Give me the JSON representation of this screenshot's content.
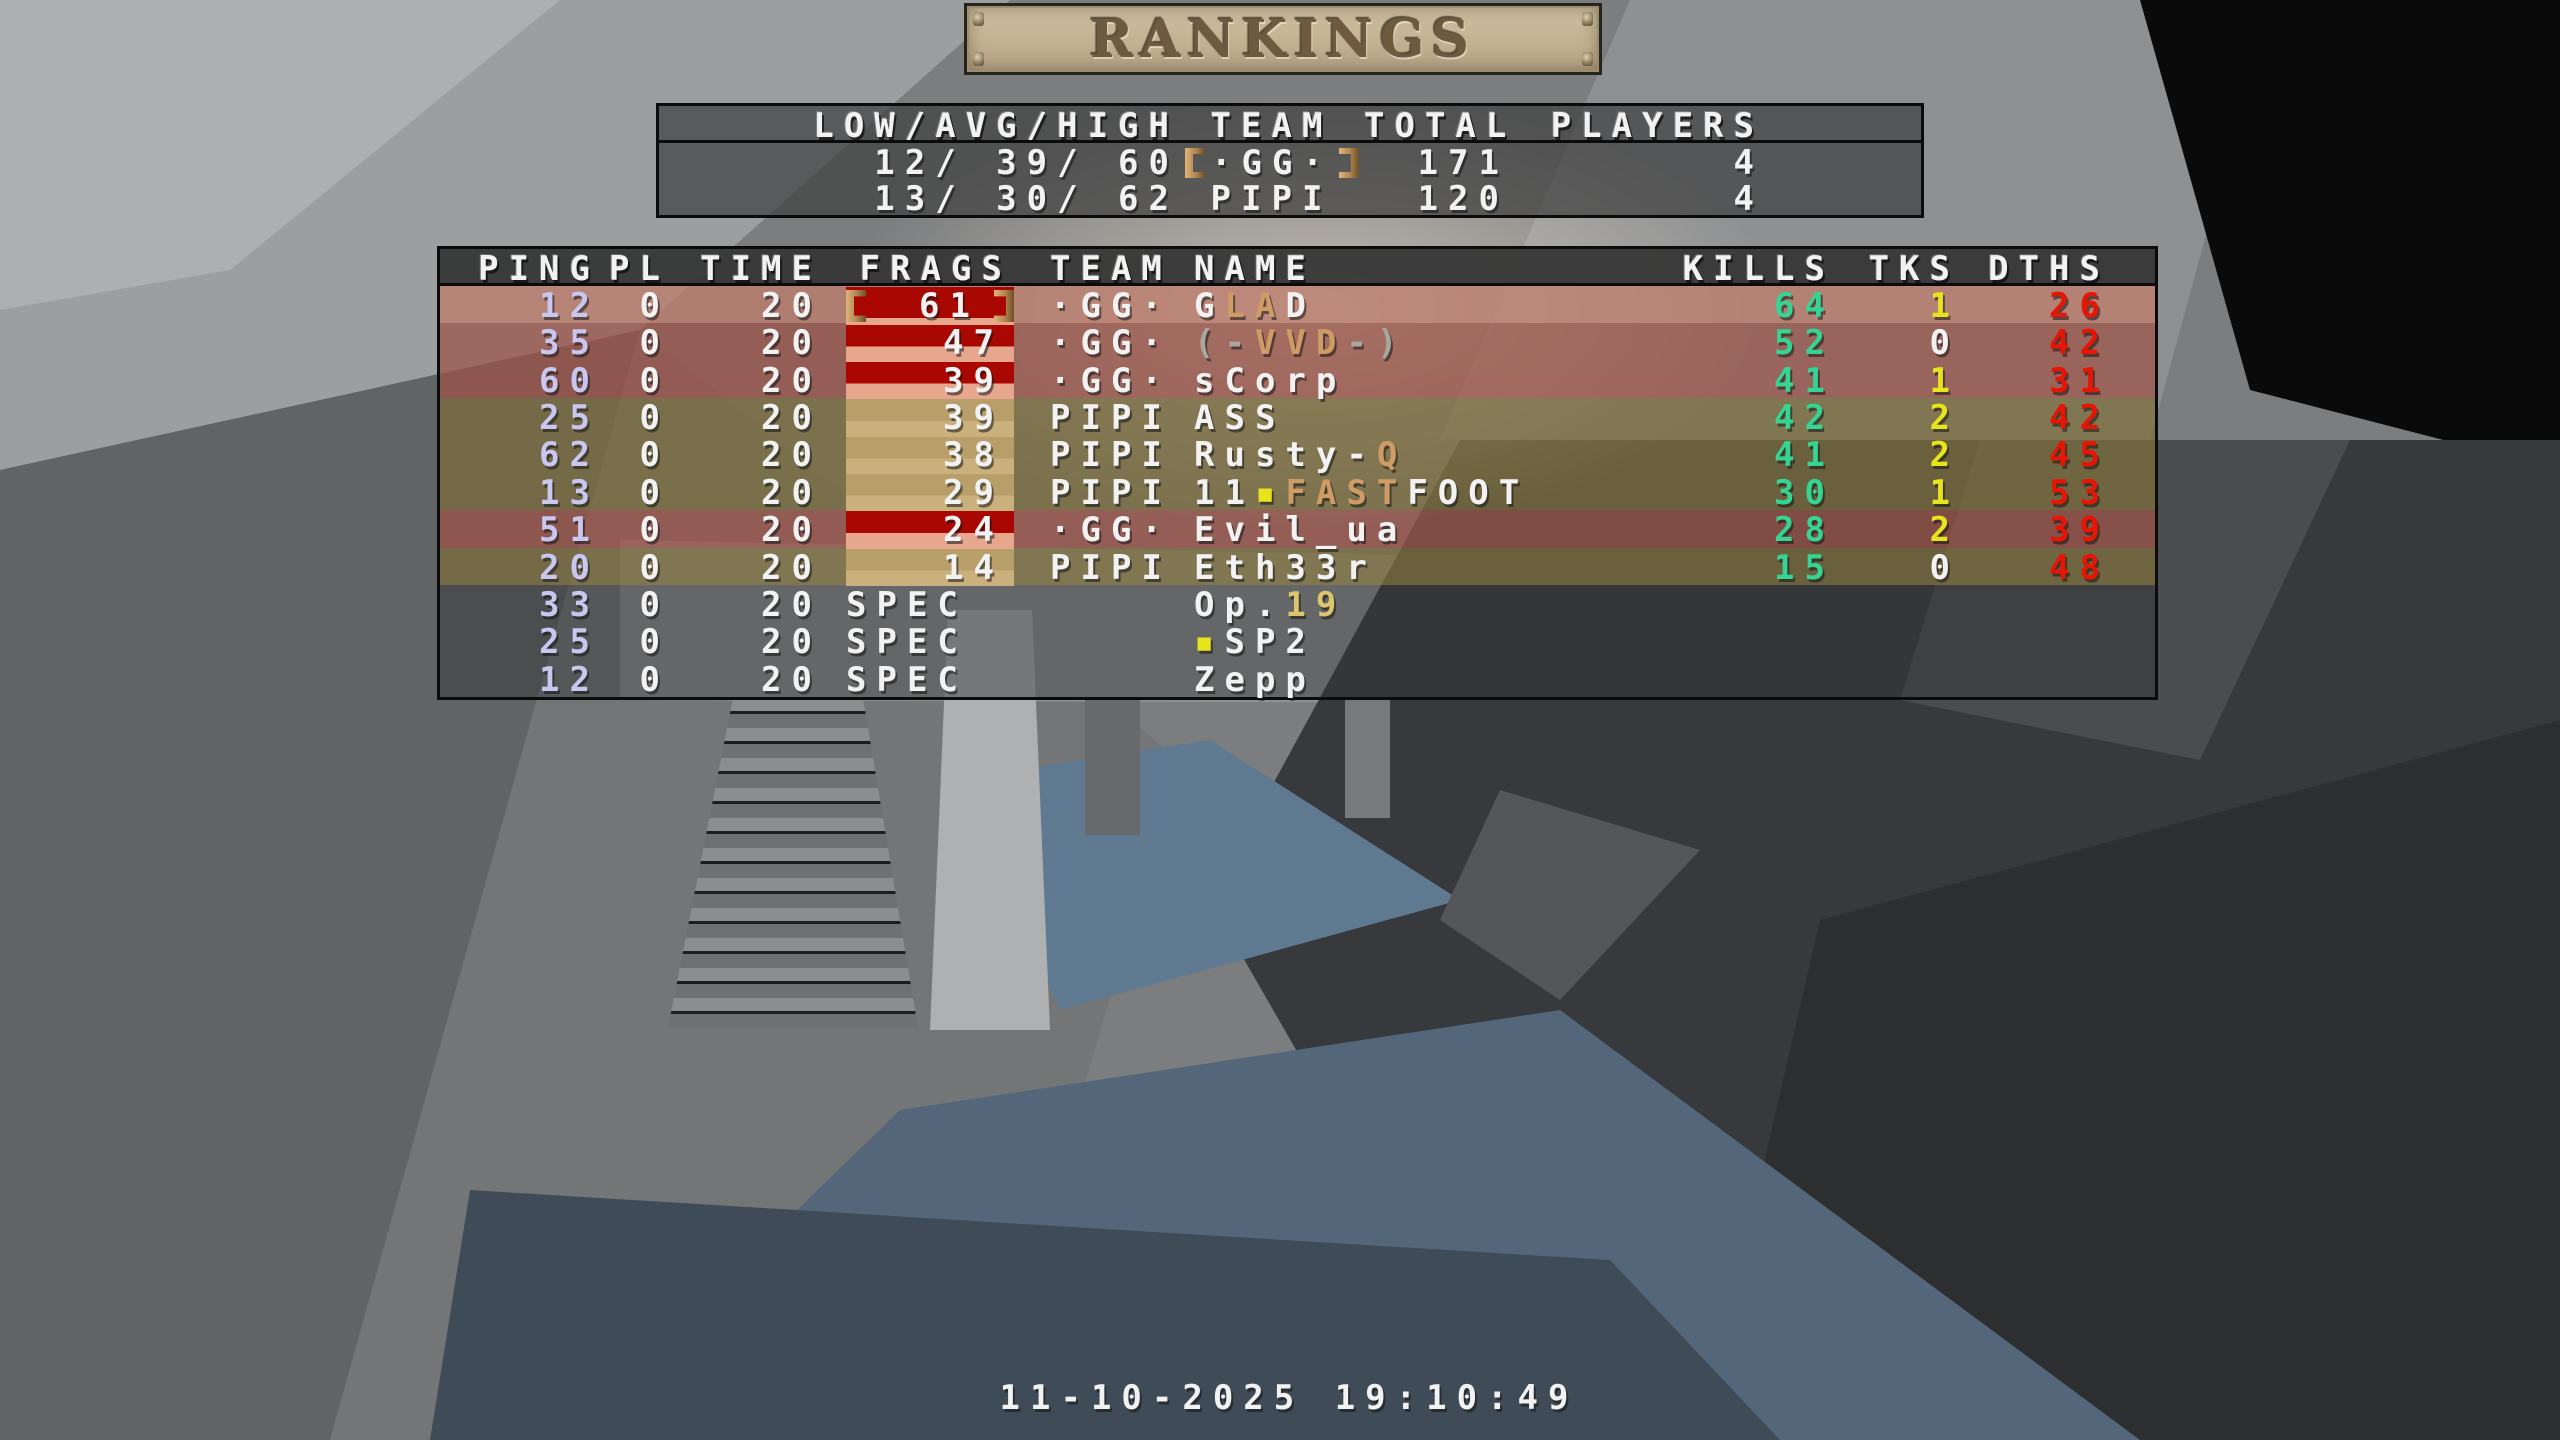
{
  "banner": {
    "title": "RANKINGS"
  },
  "summary": {
    "headers": [
      "LOW/AVG/HIGH",
      "TEAM",
      "TOTAL",
      "PLAYERS"
    ],
    "rows": [
      {
        "low_avg_high": "12/ 39/ 60",
        "team": "·GG·",
        "team_bracketed": true,
        "total": "171",
        "players": "4"
      },
      {
        "low_avg_high": "13/ 30/ 62",
        "team": "PIPI",
        "team_bracketed": false,
        "total": "120",
        "players": "4"
      }
    ]
  },
  "scoreboard": {
    "headers": [
      "PING",
      "PL",
      "TIME",
      "FRAGS",
      "TEAM",
      "NAME",
      "KILLS",
      "TKS",
      "DTHS"
    ],
    "rows": [
      {
        "ping": "12",
        "pl": "0",
        "time": "20",
        "frags": "61",
        "leader": true,
        "team": "·GG·",
        "team_key": "gg",
        "name": [
          {
            "t": "G",
            "c": "white"
          },
          {
            "t": "LA",
            "c": "tan"
          },
          {
            "t": "D",
            "c": "white"
          }
        ],
        "kills": "64",
        "tks": "1",
        "dths": "26"
      },
      {
        "ping": "35",
        "pl": "0",
        "time": "20",
        "frags": "47",
        "leader": false,
        "team": "·GG·",
        "team_key": "gg",
        "name": [
          {
            "t": "(-",
            "c": "gray"
          },
          {
            "t": "VVD",
            "c": "tan"
          },
          {
            "t": "-)",
            "c": "gray"
          }
        ],
        "kills": "52",
        "tks": "0",
        "dths": "42"
      },
      {
        "ping": "60",
        "pl": "0",
        "time": "20",
        "frags": "39",
        "leader": false,
        "team": "·GG·",
        "team_key": "gg",
        "name": [
          {
            "t": "sCorp",
            "c": "white"
          }
        ],
        "kills": "41",
        "tks": "1",
        "dths": "31"
      },
      {
        "ping": "25",
        "pl": "0",
        "time": "20",
        "frags": "39",
        "leader": false,
        "team": "PIPI",
        "team_key": "pipi",
        "name": [
          {
            "t": "ASS",
            "c": "white"
          }
        ],
        "kills": "42",
        "tks": "2",
        "dths": "42"
      },
      {
        "ping": "62",
        "pl": "0",
        "time": "20",
        "frags": "38",
        "leader": false,
        "team": "PIPI",
        "team_key": "pipi",
        "name": [
          {
            "t": "Rusty-",
            "c": "white"
          },
          {
            "t": "Q",
            "c": "tan"
          }
        ],
        "kills": "41",
        "tks": "2",
        "dths": "45"
      },
      {
        "ping": "13",
        "pl": "0",
        "time": "20",
        "frags": "29",
        "leader": false,
        "team": "PIPI",
        "team_key": "pipi",
        "name": [
          {
            "t": "11",
            "c": "white"
          },
          {
            "t": "▪",
            "c": "yellow"
          },
          {
            "t": "FAST",
            "c": "tan"
          },
          {
            "t": "FOOT",
            "c": "white"
          }
        ],
        "kills": "30",
        "tks": "1",
        "dths": "53"
      },
      {
        "ping": "51",
        "pl": "0",
        "time": "20",
        "frags": "24",
        "leader": false,
        "team": "·GG·",
        "team_key": "gg",
        "name": [
          {
            "t": "Evil_ua",
            "c": "white"
          }
        ],
        "kills": "28",
        "tks": "2",
        "dths": "39"
      },
      {
        "ping": "20",
        "pl": "0",
        "time": "20",
        "frags": "14",
        "leader": false,
        "team": "PIPI",
        "team_key": "pipi",
        "name": [
          {
            "t": "Eth33r",
            "c": "white"
          }
        ],
        "kills": "15",
        "tks": "0",
        "dths": "48"
      },
      {
        "ping": "33",
        "pl": "0",
        "time": "20",
        "frags": "SPEC",
        "leader": false,
        "team": "",
        "team_key": "spec",
        "name": [
          {
            "t": "Op.",
            "c": "white"
          },
          {
            "t": "19",
            "c": "gold"
          }
        ],
        "kills": "",
        "tks": "",
        "dths": ""
      },
      {
        "ping": "25",
        "pl": "0",
        "time": "20",
        "frags": "SPEC",
        "leader": false,
        "team": "",
        "team_key": "spec",
        "name": [
          {
            "t": "▪",
            "c": "yellow"
          },
          {
            "t": "SP2",
            "c": "white"
          }
        ],
        "kills": "",
        "tks": "",
        "dths": ""
      },
      {
        "ping": "12",
        "pl": "0",
        "time": "20",
        "frags": "SPEC",
        "leader": false,
        "team": "",
        "team_key": "spec",
        "name": [
          {
            "t": "Zepp",
            "c": "white"
          }
        ],
        "kills": "",
        "tks": "",
        "dths": ""
      }
    ]
  },
  "footer": {
    "datetime": "11-10-2025 19:10:49"
  },
  "colors": {
    "white": "#f2f2f2",
    "ping_lavender": "#c9c6ef",
    "kills_green": "#35d492",
    "tks_yellow": "#e8e41c",
    "dths_red": "#e81404",
    "tan": "#cf9c66",
    "gray": "#a8a8a0",
    "gold": "#dcc56c",
    "yellow": "#e8e41c",
    "bracket_copper": "#c89a62",
    "gg_row": "rgba(205,98,80,0.50)",
    "gg_row_leader": "rgba(233,148,126,0.60)",
    "pipi_row": "rgba(151,131,66,0.55)",
    "gg_cell_top": "#a90702",
    "gg_cell_bottom": "#e7a78f",
    "pipi_cell_top": "#b89f6a",
    "pipi_cell_bottom": "#c9b07c"
  }
}
